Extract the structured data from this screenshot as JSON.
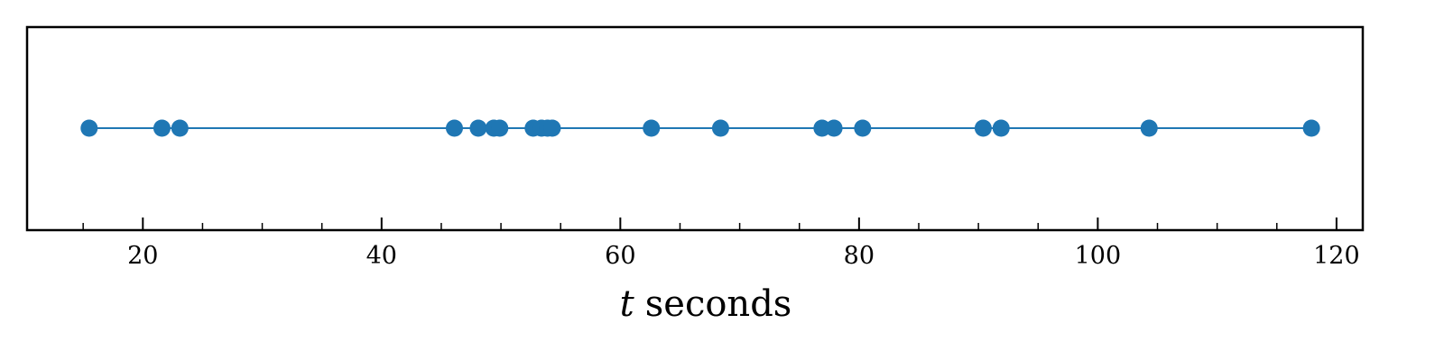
{
  "chart_data": {
    "type": "scatter",
    "connected": true,
    "xlabel_var": "t",
    "xlabel_unit": "seconds",
    "xlim": [
      10.3,
      122.2
    ],
    "x_major_ticks": [
      20,
      40,
      60,
      80,
      100,
      120
    ],
    "x_minor_ticks": [
      15,
      25,
      30,
      35,
      45,
      50,
      55,
      65,
      70,
      75,
      85,
      90,
      95,
      105,
      110,
      115
    ],
    "x": [
      15.5,
      21.6,
      23.1,
      46.1,
      48.1,
      49.4,
      49.9,
      52.7,
      53.4,
      53.9,
      54.3,
      62.6,
      68.4,
      76.9,
      77.9,
      80.3,
      90.4,
      91.9,
      104.3,
      117.9
    ],
    "y": [
      0,
      0,
      0,
      0,
      0,
      0,
      0,
      0,
      0,
      0,
      0,
      0,
      0,
      0,
      0,
      0,
      0,
      0,
      0,
      0
    ],
    "grid": false,
    "colors": {
      "series": "#1f77b4",
      "axes": "#000000"
    }
  }
}
